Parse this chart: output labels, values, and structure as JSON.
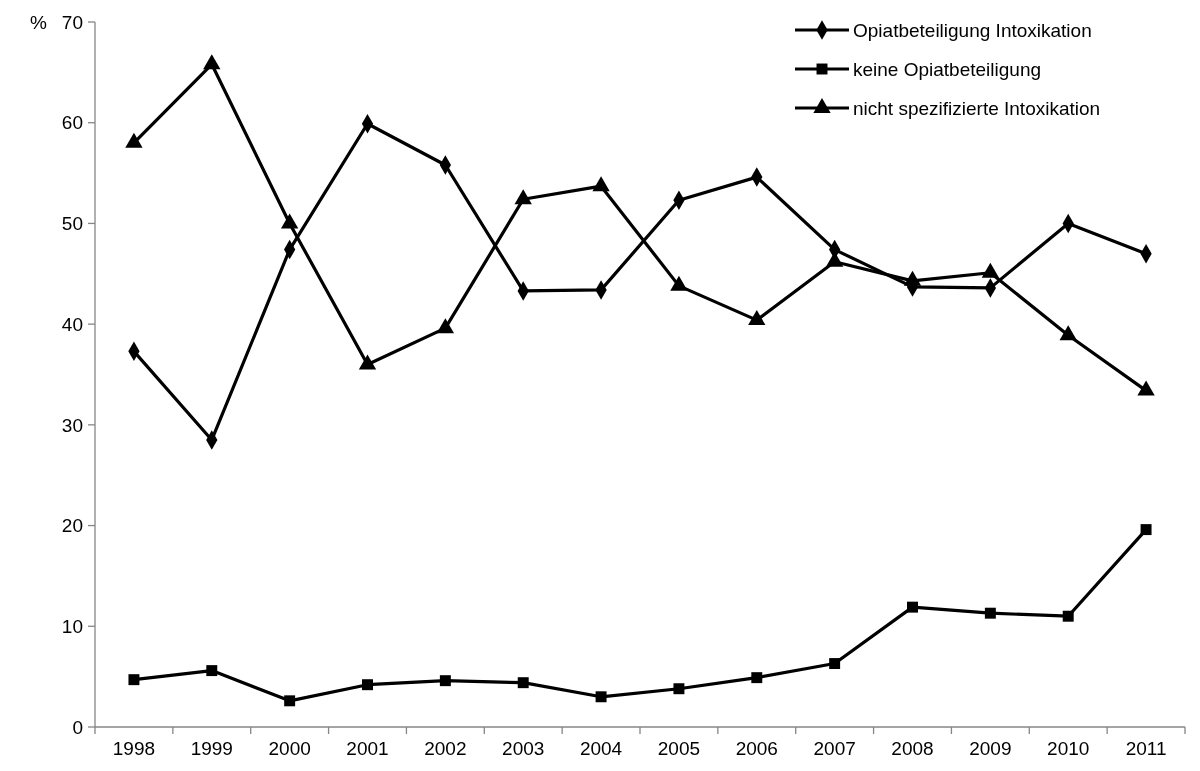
{
  "chart_data": {
    "type": "line",
    "ylabel": "%",
    "categories": [
      "1998",
      "1999",
      "2000",
      "2001",
      "2002",
      "2003",
      "2004",
      "2005",
      "2006",
      "2007",
      "2008",
      "2009",
      "2010",
      "2011"
    ],
    "ylim": [
      0,
      70
    ],
    "yticks": [
      0,
      10,
      20,
      30,
      40,
      50,
      60,
      70
    ],
    "grid": false,
    "legend": "top right",
    "line_style": "solid",
    "series": [
      {
        "name": "Opiatbeteiligung Intoxikation",
        "color": "#000000",
        "marker": "diamond",
        "values": [
          37.3,
          28.5,
          47.4,
          59.9,
          55.8,
          43.3,
          43.4,
          52.3,
          54.6,
          47.4,
          43.7,
          43.6,
          50.0,
          47.0
        ]
      },
      {
        "name": "keine Opiatbeteiligung",
        "color": "#000000",
        "marker": "square",
        "values": [
          4.7,
          5.6,
          2.6,
          4.2,
          4.6,
          4.4,
          3.0,
          3.8,
          4.9,
          6.3,
          11.9,
          11.3,
          11.0,
          19.6
        ]
      },
      {
        "name": "nicht spezifizierte Intoxikation",
        "color": "#000000",
        "marker": "triangle",
        "values": [
          58.0,
          65.8,
          50.0,
          36.0,
          39.6,
          52.4,
          53.7,
          43.8,
          40.4,
          46.2,
          44.3,
          45.1,
          38.9,
          33.4
        ]
      }
    ]
  }
}
